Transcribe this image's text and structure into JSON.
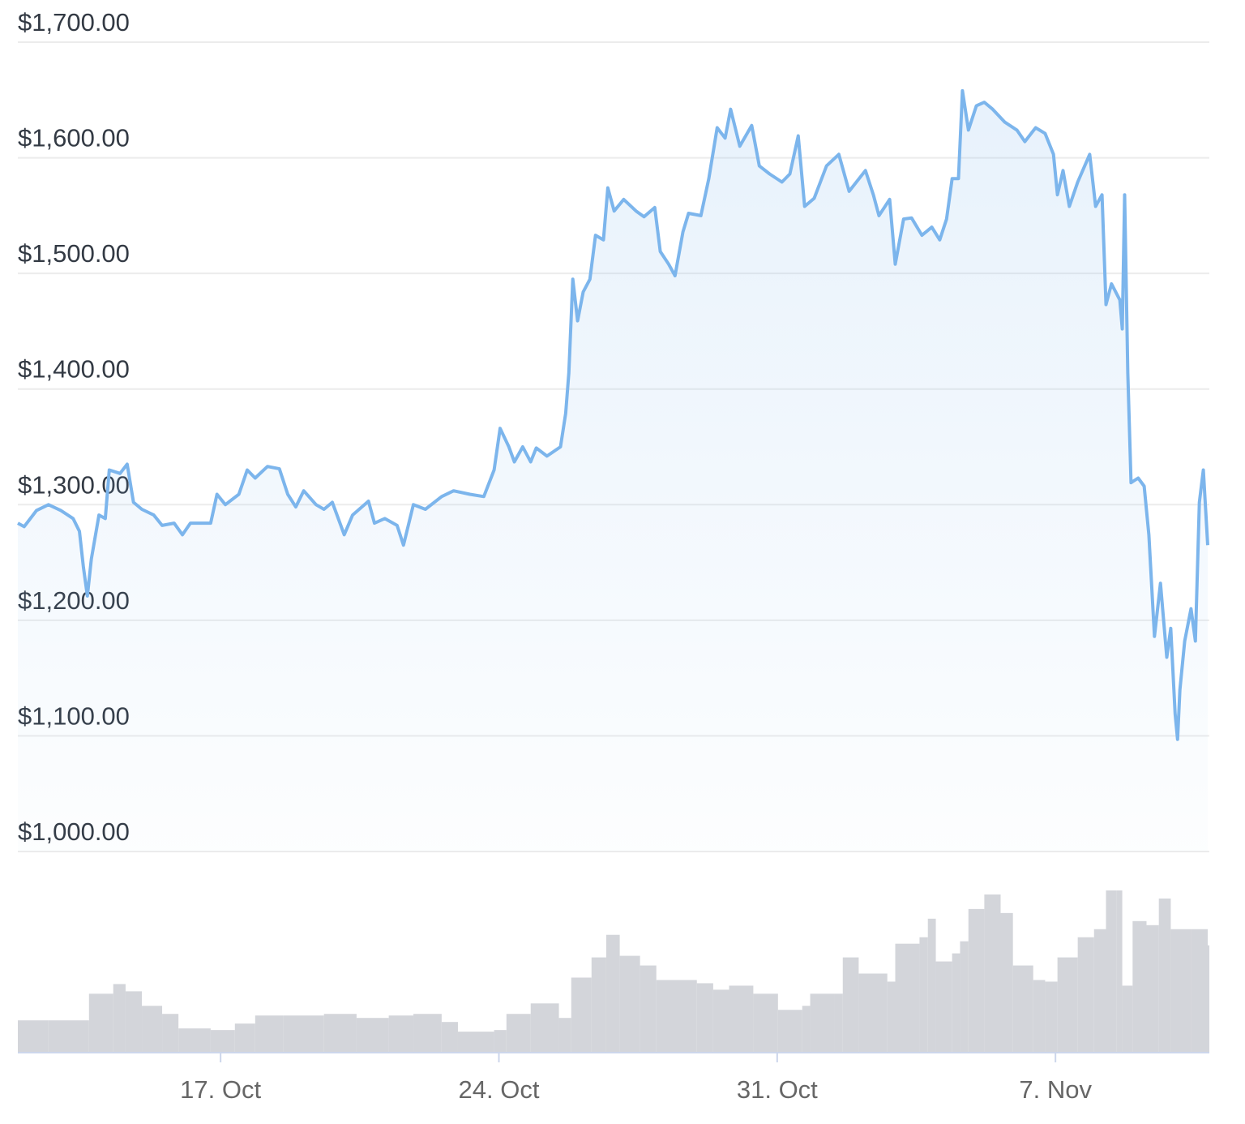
{
  "chart_data": {
    "type": "line",
    "area": true,
    "color": "#7cb5ec",
    "grid": true,
    "ylim": [
      1000,
      1700
    ],
    "yticks": [
      {
        "value": 1000,
        "label": "$1,000.00"
      },
      {
        "value": 1100,
        "label": "$1,100.00"
      },
      {
        "value": 1200,
        "label": "$1,200.00"
      },
      {
        "value": 1300,
        "label": "$1,300.00"
      },
      {
        "value": 1400,
        "label": "$1,400.00"
      },
      {
        "value": 1500,
        "label": "$1,500.00"
      },
      {
        "value": 1600,
        "label": "$1,600.00"
      },
      {
        "value": 1700,
        "label": "$1,700.00"
      }
    ],
    "xlim": [
      11.9,
      41.87
    ],
    "xticks": [
      {
        "value": 17,
        "label": "17. Oct"
      },
      {
        "value": 24,
        "label": "24. Oct"
      },
      {
        "value": 31,
        "label": "31. Oct"
      },
      {
        "value": 38,
        "label": "7. Nov"
      }
    ],
    "x": [
      11.9,
      12.06,
      12.37,
      12.67,
      12.98,
      13.29,
      13.45,
      13.55,
      13.65,
      13.75,
      13.94,
      14.1,
      14.2,
      14.47,
      14.65,
      14.81,
      15.02,
      15.32,
      15.53,
      15.83,
      16.04,
      16.24,
      16.75,
      16.91,
      17.12,
      17.46,
      17.67,
      17.87,
      18.18,
      18.48,
      18.69,
      18.89,
      19.09,
      19.4,
      19.6,
      19.81,
      20.11,
      20.32,
      20.72,
      20.87,
      21.13,
      21.44,
      21.6,
      21.85,
      22.15,
      22.56,
      22.86,
      23.27,
      23.62,
      23.88,
      24.03,
      24.25,
      24.39,
      24.6,
      24.8,
      24.94,
      25.21,
      25.55,
      25.68,
      25.76,
      25.86,
      25.98,
      26.12,
      26.29,
      26.43,
      26.63,
      26.74,
      26.9,
      27.14,
      27.45,
      27.65,
      27.92,
      28.06,
      28.27,
      28.43,
      28.63,
      28.77,
      29.08,
      29.28,
      29.49,
      29.69,
      29.83,
      30.06,
      30.36,
      30.55,
      30.81,
      31.12,
      31.32,
      31.53,
      31.69,
      31.93,
      32.24,
      32.55,
      32.81,
      33.22,
      33.42,
      33.56,
      33.83,
      33.97,
      34.18,
      34.38,
      34.64,
      34.89,
      35.09,
      35.26,
      35.4,
      35.56,
      35.66,
      35.81,
      36.01,
      36.21,
      36.42,
      36.72,
      37.03,
      37.23,
      37.5,
      37.74,
      37.95,
      38.05,
      38.19,
      38.35,
      38.56,
      38.86,
      39.01,
      39.17,
      39.27,
      39.41,
      39.62,
      39.68,
      39.74,
      39.82,
      39.9,
      40.08,
      40.23,
      40.35,
      40.49,
      40.64,
      40.8,
      40.9,
      41.01,
      41.07,
      41.13,
      41.25,
      41.41,
      41.52,
      41.62,
      41.72,
      41.83
    ],
    "values": [
      1284,
      1281,
      1295,
      1300,
      1295,
      1288,
      1277,
      1246,
      1221,
      1253,
      1291,
      1288,
      1330,
      1327,
      1335,
      1302,
      1296,
      1291,
      1282,
      1284,
      1274,
      1284,
      1284,
      1309,
      1300,
      1309,
      1330,
      1323,
      1333,
      1331,
      1309,
      1298,
      1312,
      1300,
      1296,
      1302,
      1274,
      1291,
      1303,
      1284,
      1288,
      1282,
      1265,
      1300,
      1296,
      1307,
      1312,
      1309,
      1307,
      1330,
      1366,
      1350,
      1337,
      1350,
      1337,
      1349,
      1342,
      1350,
      1379,
      1414,
      1495,
      1459,
      1484,
      1495,
      1533,
      1529,
      1574,
      1554,
      1564,
      1554,
      1549,
      1557,
      1519,
      1508,
      1498,
      1536,
      1552,
      1550,
      1582,
      1626,
      1617,
      1642,
      1610,
      1628,
      1593,
      1586,
      1579,
      1586,
      1619,
      1558,
      1565,
      1593,
      1603,
      1571,
      1589,
      1568,
      1550,
      1564,
      1508,
      1547,
      1548,
      1533,
      1540,
      1529,
      1547,
      1582,
      1582,
      1658,
      1624,
      1645,
      1648,
      1642,
      1631,
      1624,
      1614,
      1626,
      1621,
      1603,
      1568,
      1589,
      1558,
      1579,
      1603,
      1558,
      1568,
      1473,
      1491,
      1477,
      1452,
      1568,
      1414,
      1319,
      1323,
      1316,
      1274,
      1186,
      1232,
      1168,
      1193,
      1119,
      1097,
      1140,
      1182,
      1210,
      1182,
      1302,
      1330,
      1265
    ],
    "volume": {
      "color": "#d3d5da",
      "x": [
        11.9,
        12.67,
        13.49,
        13.69,
        14.3,
        14.61,
        15.02,
        15.53,
        15.94,
        16.75,
        17.36,
        17.87,
        18.58,
        19.6,
        20.42,
        21.23,
        21.85,
        22.56,
        22.97,
        23.88,
        24.19,
        24.8,
        25.51,
        25.82,
        26.33,
        26.7,
        27.04,
        27.55,
        27.96,
        28.98,
        29.39,
        29.79,
        30.4,
        31.02,
        31.63,
        31.83,
        32.44,
        32.65,
        33.05,
        33.77,
        33.97,
        34.58,
        34.79,
        34.99,
        35.4,
        35.6,
        35.81,
        36.21,
        36.62,
        36.93,
        37.44,
        37.74,
        38.05,
        38.56,
        38.97,
        39.27,
        39.54,
        39.68,
        39.94,
        40.29,
        40.6,
        40.9,
        41.41,
        41.83
      ],
      "values": [
        40,
        40,
        40,
        73,
        85,
        76,
        58,
        48,
        30,
        28,
        36,
        46,
        46,
        48,
        43,
        46,
        48,
        38,
        26,
        28,
        48,
        61,
        43,
        93,
        118,
        146,
        120,
        108,
        90,
        86,
        78,
        83,
        73,
        53,
        58,
        73,
        73,
        118,
        98,
        88,
        135,
        143,
        166,
        113,
        123,
        138,
        178,
        196,
        173,
        108,
        90,
        88,
        118,
        143,
        153,
        201,
        201,
        83,
        163,
        158,
        191,
        153,
        153,
        133
      ]
    }
  }
}
